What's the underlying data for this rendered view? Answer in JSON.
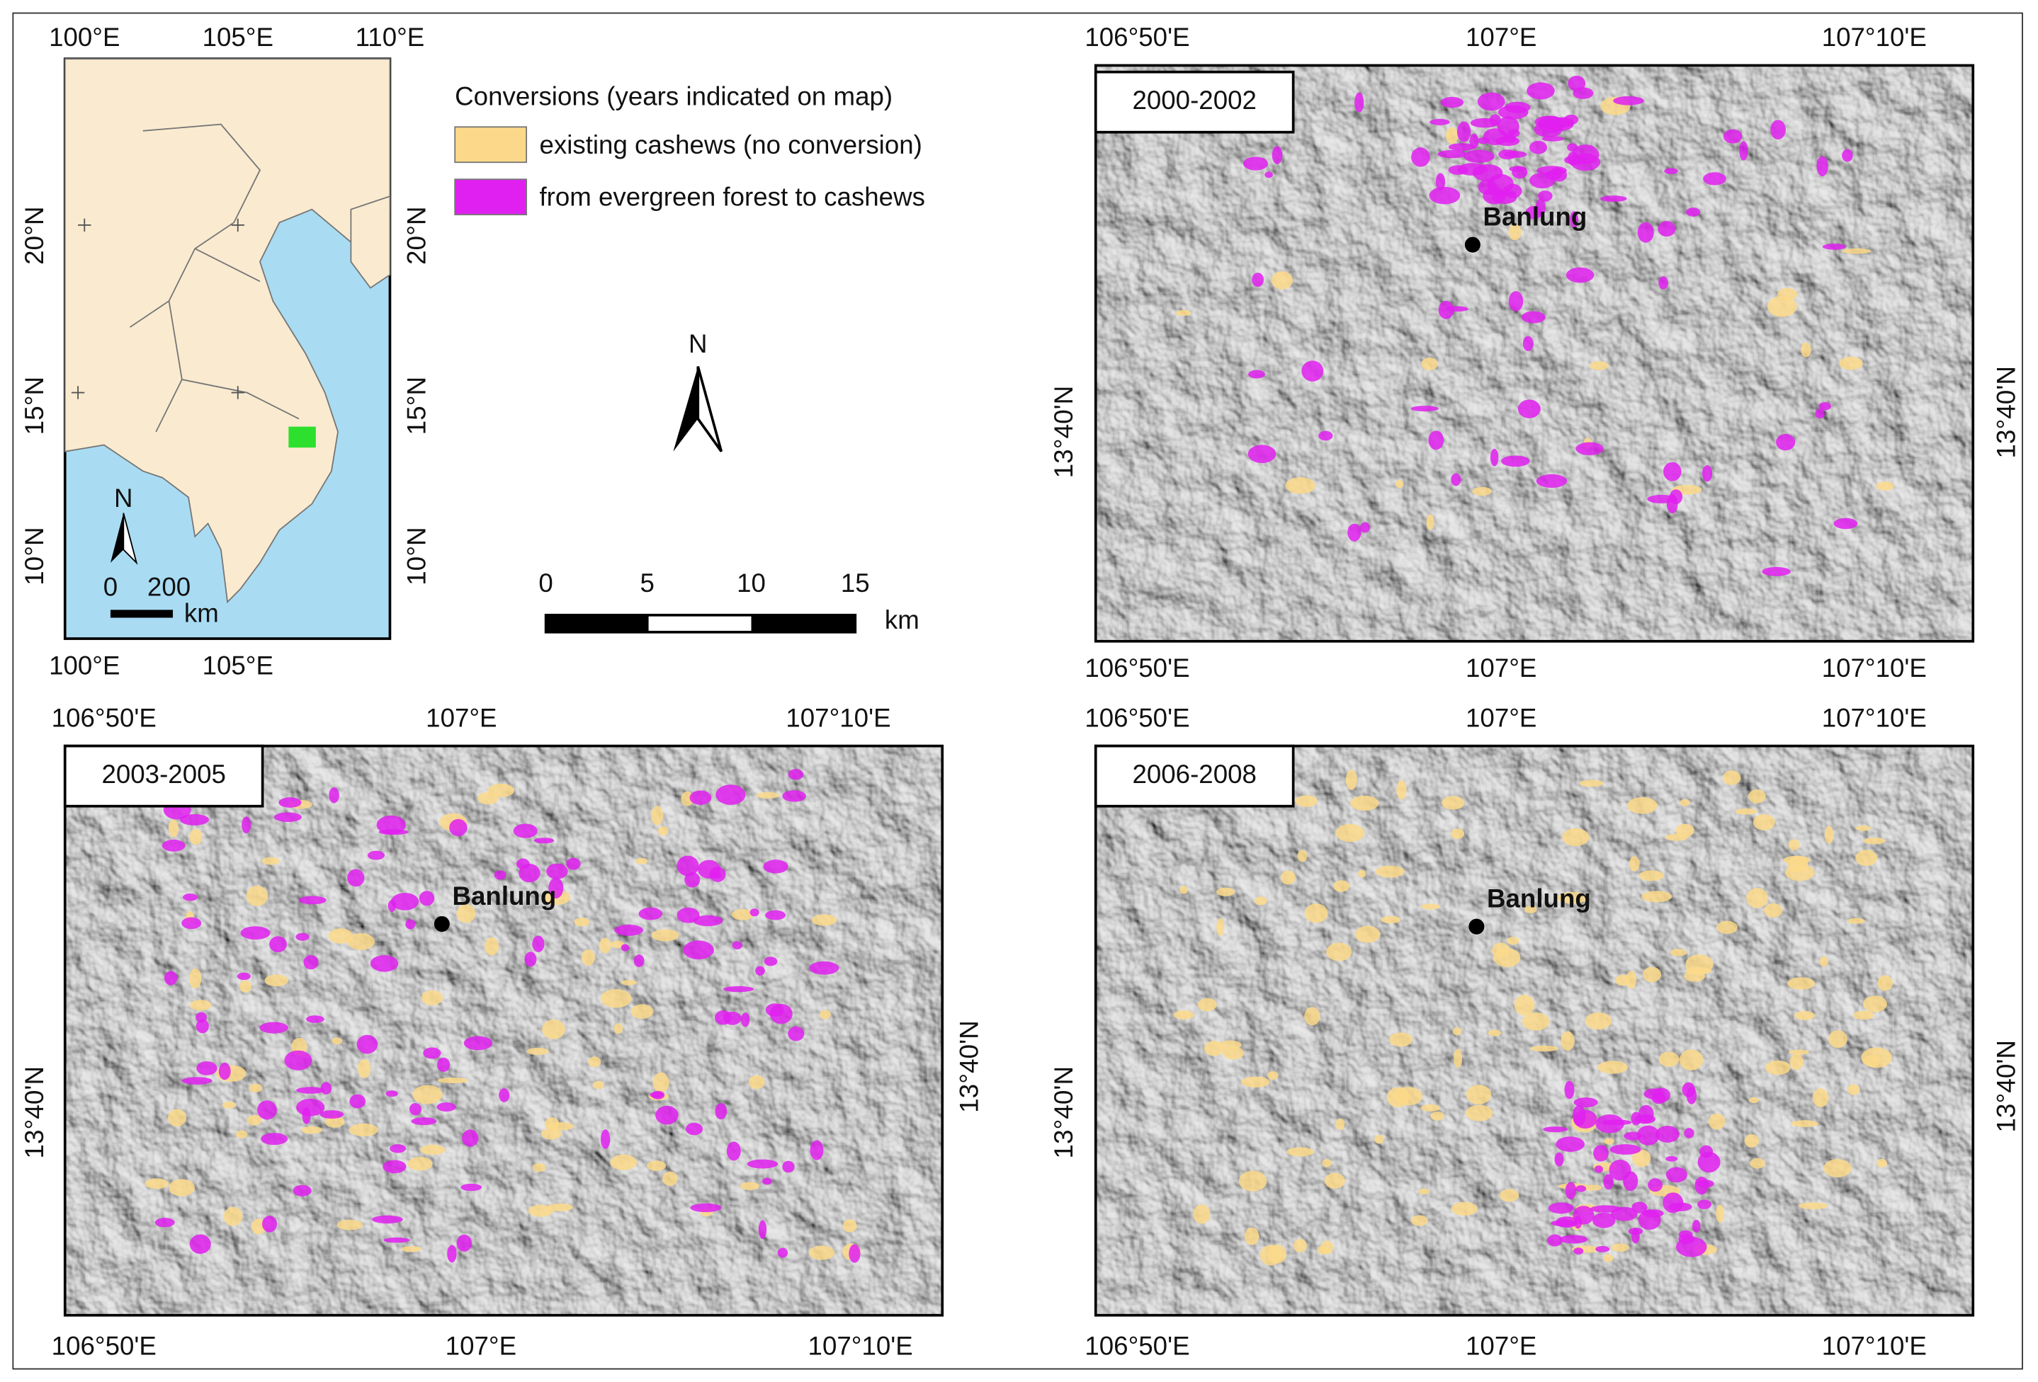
{
  "inset": {
    "top_ticks": [
      "100°E",
      "105°E",
      "110°E"
    ],
    "bottom_ticks": [
      "100°E",
      "105°E"
    ],
    "left_ticks": [
      "20°N",
      "15°N",
      "10°N"
    ],
    "right_ticks": [
      "20°N",
      "15°N",
      "10°N"
    ],
    "north": "N",
    "scale_labels": [
      "0",
      "200"
    ],
    "scale_unit": "km"
  },
  "legend": {
    "title": "Conversions (years indicated on map)",
    "items": [
      {
        "label": "existing cashews (no conversion)",
        "color": "#fcd98a"
      },
      {
        "label": "from evergreen forest to cashews",
        "color": "#e020f0"
      }
    ]
  },
  "north_arrow": "N",
  "scale_bar": {
    "labels": [
      "0",
      "5",
      "10",
      "15"
    ],
    "unit": "km"
  },
  "panels": [
    {
      "period": "2000-2002",
      "town": "Banlung",
      "top_ticks": [
        "106°50'E",
        "107°E",
        "107°10'E"
      ],
      "bottom_ticks": [
        "106°50'E",
        "107°E",
        "107°10'E"
      ],
      "left_tick": "13°40'N",
      "right_tick": "13°40'N"
    },
    {
      "period": "2003-2005",
      "town": "Banlung",
      "top_ticks": [
        "106°50'E",
        "107°E",
        "107°10'E"
      ],
      "bottom_ticks": [
        "106°50'E",
        "107°E",
        "107°10'E"
      ],
      "left_tick": "13°40'N",
      "right_tick": "13°40'N"
    },
    {
      "period": "2006-2008",
      "town": "Banlung",
      "top_ticks": [
        "106°50'E",
        "107°E",
        "107°10'E"
      ],
      "bottom_ticks": [
        "106°50'E",
        "107°E",
        "107°10'E"
      ],
      "left_tick": "13°40'N",
      "right_tick": "13°40'N"
    }
  ]
}
